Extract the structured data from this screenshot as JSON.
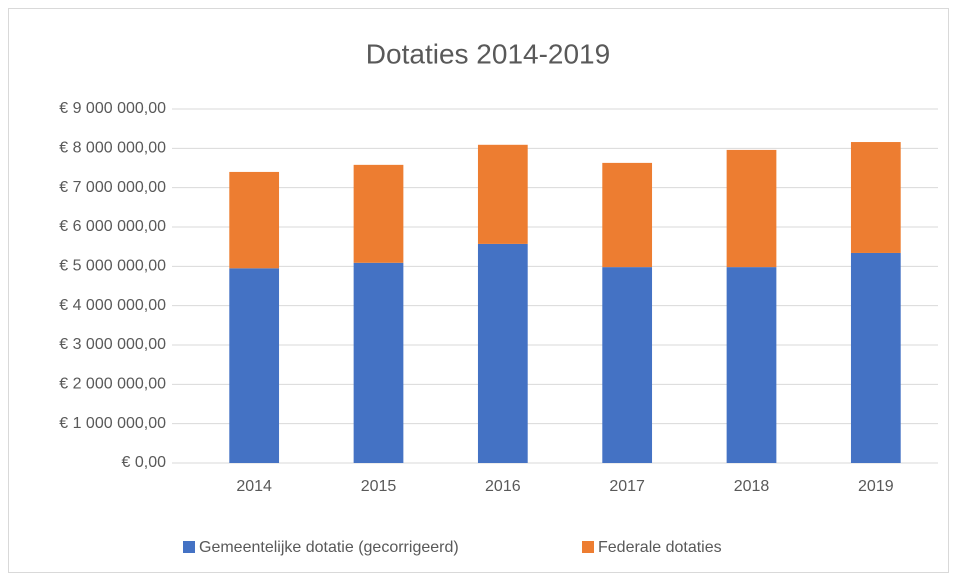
{
  "chart_data": {
    "type": "stacked_bar",
    "title": "Dotaties 2014-2019",
    "categories": [
      "2014",
      "2015",
      "2016",
      "2017",
      "2018",
      "2019"
    ],
    "series": [
      {
        "name": "Gemeentelijke dotatie (gecorrigeerd)",
        "color": "#4472c4",
        "values": [
          4950000,
          5090000,
          5570000,
          4980000,
          4980000,
          5340000
        ]
      },
      {
        "name": "Federale dotaties",
        "color": "#ed7d31",
        "values": [
          2450000,
          2490000,
          2520000,
          2650000,
          2980000,
          2820000
        ]
      }
    ],
    "ylim": [
      0,
      9000000
    ],
    "yticks": [
      {
        "value": 0,
        "label": "€ 0,00"
      },
      {
        "value": 1000000,
        "label": "€ 1 000 000,00"
      },
      {
        "value": 2000000,
        "label": "€ 2 000 000,00"
      },
      {
        "value": 3000000,
        "label": "€ 3 000 000,00"
      },
      {
        "value": 4000000,
        "label": "€ 4 000 000,00"
      },
      {
        "value": 5000000,
        "label": "€ 5 000 000,00"
      },
      {
        "value": 6000000,
        "label": "€ 6 000 000,00"
      },
      {
        "value": 7000000,
        "label": "€ 7 000 000,00"
      },
      {
        "value": 8000000,
        "label": "€ 8 000 000,00"
      },
      {
        "value": 9000000,
        "label": "€ 9 000 000,00"
      }
    ],
    "grid": true,
    "legend": "bottom"
  }
}
